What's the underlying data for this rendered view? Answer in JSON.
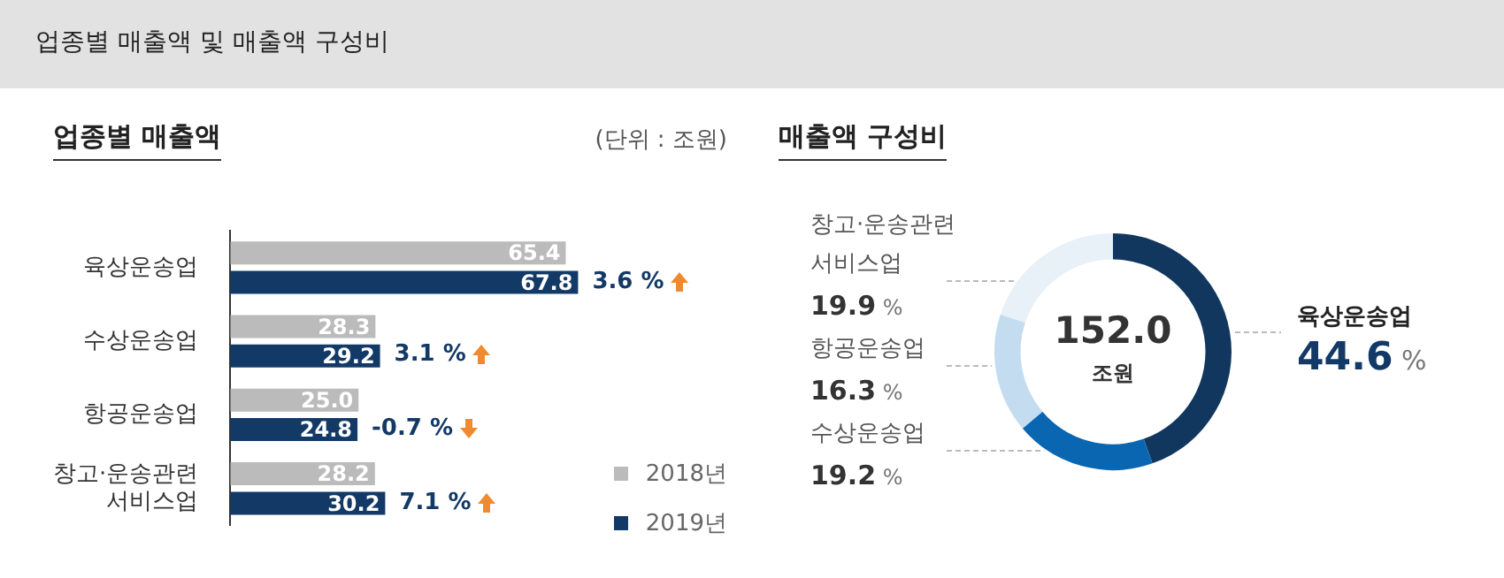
{
  "chart_data": [
    {
      "type": "bar",
      "orientation": "horizontal",
      "title": "업종별 매출액 및 매출액 구성비",
      "subtitle": "업종별 매출액",
      "categories": [
        "육상운송업",
        "수상운송업",
        "항공운송업",
        "창고·운송관련 서비스업"
      ],
      "series": [
        {
          "name": "2018년",
          "color": "#bbbbbb",
          "values": [
            65.4,
            28.3,
            25.0,
            28.2
          ],
          "value_labels": [
            "65.4",
            "28.3",
            "25.0",
            "28.2"
          ]
        },
        {
          "name": "2019년",
          "color": "#133a66",
          "values": [
            67.8,
            29.2,
            24.8,
            30.2
          ],
          "value_labels": [
            "67.8",
            "29.2",
            "24.8",
            "30.2"
          ]
        }
      ],
      "legend": "bottom right",
      "annotations": [
        "(단위 : 조원)",
        {
          "text": "3.6 %",
          "x": 67.8,
          "y": "육상운송업"
        },
        {
          "text": "3.1 %",
          "x": 29.2,
          "y": "수상운송업"
        },
        {
          "text": "-0.7 %",
          "x": 24.8,
          "y": "항공운송업"
        },
        {
          "text": "7.1 %",
          "x": 30.2,
          "y": "창고·운송관련 서비스업"
        }
      ]
    },
    {
      "type": "donut",
      "title": "매출액 구성비",
      "categories": [
        "육상운송업",
        "수상운송업",
        "항공운송업",
        "창고·운송관련 서비스업"
      ],
      "values": [
        44.6,
        19.2,
        16.3,
        19.9
      ],
      "colors": [
        "#12375f",
        "#0b66b2",
        "#c4dcf0",
        "#e8f0f8"
      ],
      "value_labels": [
        "44.6 %",
        "19.2 %",
        "16.3 %",
        "19.9 %"
      ],
      "annotations": [
        "152.0",
        "조원"
      ]
    }
  ]
}
